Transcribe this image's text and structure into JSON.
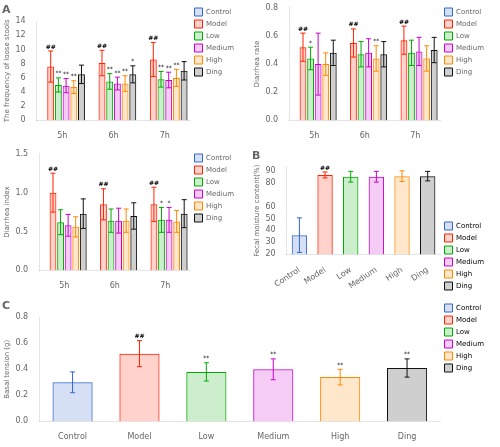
{
  "chart_data": [
    {
      "type": "bar",
      "title": "A",
      "y_label": "The frequency of loose stools",
      "categories": [
        "5h",
        "6h",
        "7h"
      ],
      "series": [
        {
          "name": "Control",
          "color": "#3366cc",
          "values": [
            0.0,
            0.0,
            0.0
          ],
          "errors": [
            0.0,
            0.0,
            0.0
          ]
        },
        {
          "name": "Model",
          "color": "#ff2200",
          "values": [
            7.6,
            8.1,
            8.6
          ],
          "errors": [
            2.2,
            1.8,
            2.4
          ]
        },
        {
          "name": "Low",
          "color": "#00aa00",
          "values": [
            5.0,
            5.5,
            5.8
          ],
          "errors": [
            1.0,
            1.1,
            1.1
          ]
        },
        {
          "name": "Medium",
          "color": "#cc00cc",
          "values": [
            4.9,
            5.2,
            5.7
          ],
          "errors": [
            1.0,
            0.9,
            1.1
          ]
        },
        {
          "name": "High",
          "color": "#ff8800",
          "values": [
            4.7,
            5.2,
            6.0
          ],
          "errors": [
            0.9,
            1.1,
            1.2
          ]
        },
        {
          "name": "Ding",
          "color": "#111111",
          "values": [
            6.5,
            6.5,
            7.0
          ],
          "errors": [
            1.3,
            1.2,
            1.3
          ]
        }
      ],
      "ylim": [
        0,
        14
      ],
      "yticks": [
        0,
        2,
        4,
        6,
        8,
        10,
        12,
        14
      ],
      "grid": false,
      "legend": "upper right",
      "annotations": [
        {
          "category": "5h",
          "series": "Model",
          "text": "##"
        },
        {
          "category": "5h",
          "series": "Low",
          "text": "**"
        },
        {
          "category": "5h",
          "series": "Medium",
          "text": "**"
        },
        {
          "category": "5h",
          "series": "High",
          "text": "**"
        },
        {
          "category": "6h",
          "series": "Model",
          "text": "##"
        },
        {
          "category": "6h",
          "series": "Low",
          "text": "**"
        },
        {
          "category": "6h",
          "series": "Medium",
          "text": "**"
        },
        {
          "category": "6h",
          "series": "High",
          "text": "**"
        },
        {
          "category": "7h",
          "series": "Model",
          "text": "##"
        },
        {
          "category": "7h",
          "series": "Low",
          "text": "**"
        },
        {
          "category": "7h",
          "series": "Medium",
          "text": "**"
        },
        {
          "category": "7h",
          "series": "High",
          "text": "**"
        },
        {
          "category": "6h",
          "series": "Ding",
          "text": "*"
        }
      ]
    },
    {
      "type": "bar",
      "y_label": "Diarrhea rate",
      "categories": [
        "5h",
        "6h",
        "7h"
      ],
      "series": [
        {
          "name": "Control",
          "color": "#3366cc",
          "values": [
            0.0,
            0.0,
            0.0
          ],
          "errors": [
            0.0,
            0.0,
            0.0
          ]
        },
        {
          "name": "Model",
          "color": "#ff2200",
          "values": [
            0.52,
            0.55,
            0.57
          ],
          "errors": [
            0.1,
            0.1,
            0.1
          ]
        },
        {
          "name": "Low",
          "color": "#00aa00",
          "values": [
            0.44,
            0.47,
            0.48
          ],
          "errors": [
            0.08,
            0.09,
            0.09
          ]
        },
        {
          "name": "Medium",
          "color": "#cc00cc",
          "values": [
            0.4,
            0.48,
            0.49
          ],
          "errors": [
            0.22,
            0.1,
            0.1
          ]
        },
        {
          "name": "High",
          "color": "#ff8800",
          "values": [
            0.4,
            0.44,
            0.44
          ],
          "errors": [
            0.08,
            0.09,
            0.09
          ]
        },
        {
          "name": "Ding",
          "color": "#111111",
          "values": [
            0.48,
            0.47,
            0.5
          ],
          "errors": [
            0.09,
            0.09,
            0.09
          ]
        }
      ],
      "ylim": [
        0.0,
        0.8
      ],
      "yticks": [
        {
          "value": 0,
          "label": "0.0"
        },
        0.2,
        0.4,
        0.6,
        0.8
      ],
      "grid": false,
      "legend": "upper right",
      "annotations": [
        {
          "category": "5h",
          "series": "Model",
          "text": "##"
        },
        {
          "category": "6h",
          "series": "Model",
          "text": "##"
        },
        {
          "category": "7h",
          "series": "Model",
          "text": "##"
        },
        {
          "category": "5h",
          "series": "Low",
          "text": "*"
        },
        {
          "category": "6h",
          "series": "High",
          "text": "**"
        }
      ]
    },
    {
      "type": "bar",
      "y_label": "Diarrhea index",
      "categories": [
        "5h",
        "6h",
        "7h"
      ],
      "series": [
        {
          "name": "Control",
          "color": "#3366cc",
          "values": [
            0.0,
            0.0,
            0.0
          ],
          "errors": [
            0.0,
            0.0,
            0.0
          ]
        },
        {
          "name": "Model",
          "color": "#ff2200",
          "values": [
            1.0,
            0.85,
            0.85
          ],
          "errors": [
            0.25,
            0.2,
            0.22
          ]
        },
        {
          "name": "Low",
          "color": "#00aa00",
          "values": [
            0.62,
            0.64,
            0.65
          ],
          "errors": [
            0.16,
            0.15,
            0.16
          ]
        },
        {
          "name": "Medium",
          "color": "#cc00cc",
          "values": [
            0.58,
            0.64,
            0.65
          ],
          "errors": [
            0.14,
            0.16,
            0.16
          ]
        },
        {
          "name": "High",
          "color": "#ff8800",
          "values": [
            0.56,
            0.64,
            0.63
          ],
          "errors": [
            0.13,
            0.15,
            0.14
          ]
        },
        {
          "name": "Ding",
          "color": "#111111",
          "values": [
            0.73,
            0.7,
            0.73
          ],
          "errors": [
            0.19,
            0.17,
            0.18
          ]
        }
      ],
      "ylim": [
        0.0,
        1.5
      ],
      "yticks": [
        {
          "value": 0,
          "label": "0.0"
        },
        0.5,
        {
          "value": 1,
          "label": "1.0"
        },
        1.5
      ],
      "grid": false,
      "legend": "upper right",
      "annotations": [
        {
          "category": "5h",
          "series": "Model",
          "text": "##"
        },
        {
          "category": "6h",
          "series": "Model",
          "text": "##"
        },
        {
          "category": "7h",
          "series": "Model",
          "text": "##"
        },
        {
          "category": "7h",
          "series": "Low",
          "text": "*"
        },
        {
          "category": "7h",
          "series": "Medium",
          "text": "*"
        }
      ]
    },
    {
      "type": "bar",
      "title": "B",
      "y_label": "Fecal moisture content(%)",
      "categories": [
        "Control",
        "Model",
        "Low",
        "Medium",
        "High",
        "Ding"
      ],
      "values": [
        36.0,
        86.5,
        85.0,
        85.0,
        85.5,
        85.5
      ],
      "errors": [
        14.5,
        2.5,
        4.5,
        4.5,
        4.5,
        4.0
      ],
      "colors": [
        "#3366cc",
        "#ff2200",
        "#00aa00",
        "#cc00cc",
        "#ff8800",
        "#111111"
      ],
      "ylim": [
        20,
        93
      ],
      "yticks": [
        20,
        30,
        40,
        50,
        60,
        80,
        90
      ],
      "grid": false,
      "legend": "lower right",
      "annotations": [
        {
          "category": "Model",
          "text": "##"
        }
      ]
    },
    {
      "type": "bar",
      "title": "C",
      "y_label": "Basal tension (g)",
      "categories": [
        "Control",
        "Model",
        "Low",
        "Medium",
        "High",
        "Ding"
      ],
      "values": [
        0.3,
        0.52,
        0.38,
        0.4,
        0.34,
        0.41
      ],
      "errors": [
        0.08,
        0.1,
        0.07,
        0.08,
        0.06,
        0.07
      ],
      "colors": [
        "#3366cc",
        "#ff2200",
        "#00aa00",
        "#cc00cc",
        "#ff8800",
        "#111111"
      ],
      "ylim": [
        0.0,
        0.8
      ],
      "yticks": [
        {
          "value": 0,
          "label": "0.0"
        },
        0.2,
        0.4,
        0.6,
        0.8
      ],
      "grid": false,
      "legend": "upper right",
      "annotations": [
        {
          "category": "Model",
          "text": "##"
        },
        {
          "category": "Low",
          "text": "**"
        },
        {
          "category": "Medium",
          "text": "**"
        },
        {
          "category": "High",
          "text": "**"
        },
        {
          "category": "Ding",
          "text": "**"
        }
      ]
    }
  ]
}
